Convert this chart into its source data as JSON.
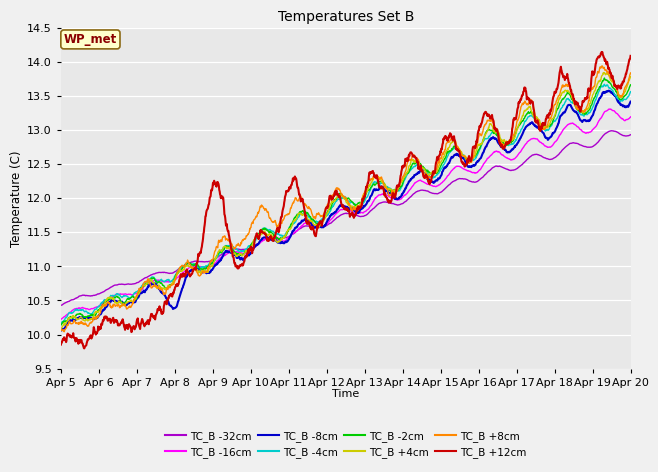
{
  "title": "Temperatures Set B",
  "xlabel": "Time",
  "ylabel": "Temperature (C)",
  "ylim": [
    9.5,
    14.5
  ],
  "fig_bg": "#f0f0f0",
  "ax_bg": "#e8e8e8",
  "wp_met_label": "WP_met",
  "legend_labels": [
    "TC_B -32cm",
    "TC_B -16cm",
    "TC_B -8cm",
    "TC_B -4cm",
    "TC_B -2cm",
    "TC_B +4cm",
    "TC_B +8cm",
    "TC_B +12cm"
  ],
  "series_colors": [
    "#aa00cc",
    "#ff00ff",
    "#0000cc",
    "#00cccc",
    "#00cc00",
    "#cccc00",
    "#ff8800",
    "#cc0000"
  ],
  "series_linewidths": [
    1.0,
    1.0,
    1.5,
    1.0,
    1.0,
    1.0,
    1.0,
    1.5
  ],
  "x_tick_labels": [
    "Apr 5",
    "Apr 6",
    "Apr 7",
    "Apr 8",
    "Apr 9",
    "Apr 10",
    "Apr 11",
    "Apr 12",
    "Apr 13",
    "Apr 14",
    "Apr 15",
    "Apr 16",
    "Apr 17",
    "Apr 18",
    "Apr 19",
    "Apr 20"
  ],
  "num_points": 1440,
  "num_days": 15
}
